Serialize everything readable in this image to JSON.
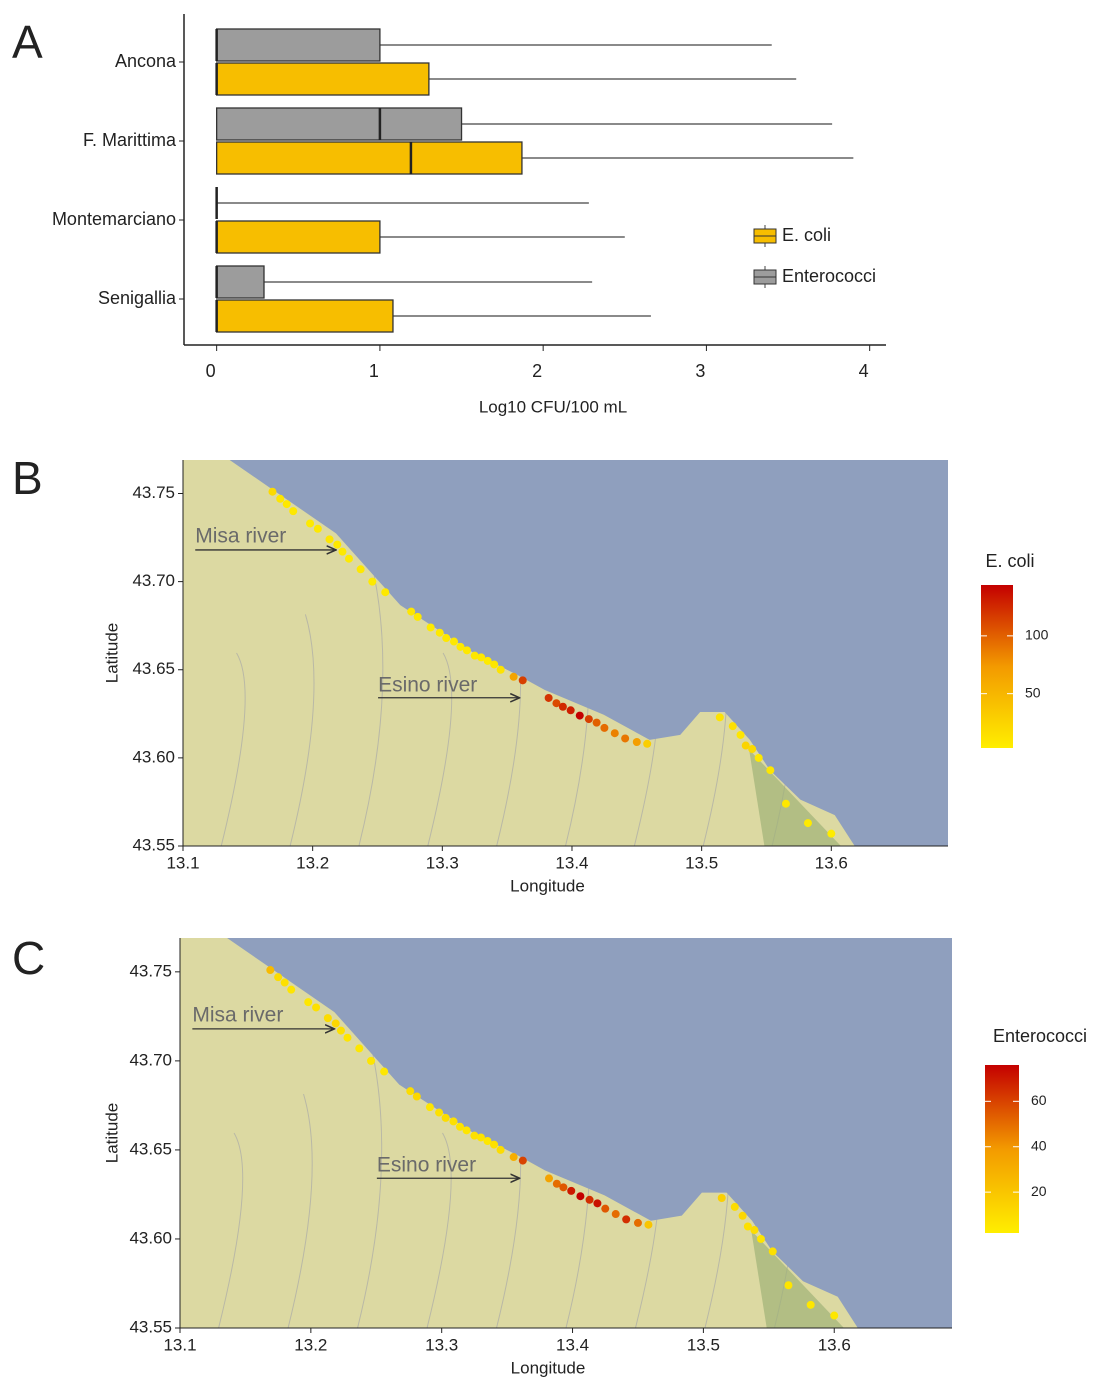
{
  "chart_data": [
    {
      "type": "boxplot",
      "panel": "A",
      "categories": [
        "Ancona",
        "F. Marittima",
        "Montemarciano",
        "Senigallia"
      ],
      "xlabel": "Log10 CFU/100 mL",
      "xlim": [
        -0.2,
        4.1
      ],
      "xticks": [
        0,
        1,
        2,
        3,
        4
      ],
      "series": [
        {
          "name": "E. coli",
          "color": "#f7be00",
          "min": [
            0,
            0,
            0,
            0
          ],
          "q1": [
            0,
            0,
            0,
            0
          ],
          "median": [
            0,
            1.19,
            0,
            0
          ],
          "q3": [
            1.3,
            1.87,
            1.0,
            1.08
          ],
          "max": [
            3.55,
            3.9,
            2.5,
            2.66
          ]
        },
        {
          "name": "Enterococci",
          "color": "#9c9c9c",
          "min": [
            0,
            0,
            0,
            0
          ],
          "q1": [
            0,
            0,
            0,
            0
          ],
          "median": [
            0,
            1.0,
            0,
            0
          ],
          "q3": [
            1.0,
            1.5,
            0,
            0.29
          ],
          "max": [
            3.4,
            3.77,
            2.28,
            2.3
          ]
        }
      ]
    },
    {
      "type": "scatter",
      "panel": "B",
      "xlabel": "Longitude",
      "ylabel": "Latitude",
      "colorbar_title": "E. coli",
      "colors": [
        "#ffee00",
        "#f39a00",
        "#c40000"
      ],
      "clim": [
        3,
        144
      ],
      "cticks": [
        50,
        100
      ],
      "annotations": [
        "Misa river",
        "Esino river"
      ],
      "xlim": [
        13.1,
        13.69
      ],
      "xticks": [
        13.1,
        13.2,
        13.3,
        13.4,
        13.5,
        13.6
      ],
      "ylim": [
        43.55,
        43.769
      ],
      "yticks": [
        43.55,
        {
          "value": 43.6,
          "label": "43.60"
        },
        43.65,
        {
          "value": 43.7,
          "label": "43.70"
        },
        43.75
      ],
      "x": [
        13.169,
        13.175,
        13.18,
        13.185,
        13.198,
        13.204,
        13.213,
        13.219,
        13.223,
        13.228,
        13.237,
        13.246,
        13.256,
        13.276,
        13.281,
        13.291,
        13.298,
        13.303,
        13.309,
        13.314,
        13.319,
        13.325,
        13.33,
        13.335,
        13.34,
        13.345,
        13.355,
        13.362,
        13.382,
        13.388,
        13.393,
        13.399,
        13.406,
        13.413,
        13.419,
        13.425,
        13.433,
        13.441,
        13.45,
        13.458,
        13.514,
        13.524,
        13.53,
        13.534,
        13.539,
        13.544,
        13.553,
        13.565,
        13.582,
        13.6
      ],
      "y": [
        43.751,
        43.747,
        43.744,
        43.74,
        43.733,
        43.73,
        43.724,
        43.721,
        43.717,
        43.713,
        43.707,
        43.7,
        43.694,
        43.683,
        43.68,
        43.674,
        43.671,
        43.668,
        43.666,
        43.663,
        43.661,
        43.658,
        43.657,
        43.655,
        43.653,
        43.65,
        43.646,
        43.644,
        43.634,
        43.631,
        43.629,
        43.627,
        43.624,
        43.622,
        43.62,
        43.617,
        43.614,
        43.611,
        43.609,
        43.608,
        43.623,
        43.618,
        43.613,
        43.607,
        43.605,
        43.6,
        43.593,
        43.574,
        43.563,
        43.557
      ],
      "values": [
        20,
        10,
        8,
        8,
        6,
        8,
        10,
        8,
        7,
        6,
        8,
        6,
        7,
        10,
        8,
        6,
        8,
        9,
        8,
        7,
        8,
        9,
        8,
        6,
        10,
        12,
        65,
        115,
        120,
        110,
        125,
        130,
        144,
        115,
        100,
        95,
        85,
        90,
        70,
        30,
        12,
        15,
        10,
        25,
        20,
        8,
        10,
        8,
        6,
        5
      ]
    },
    {
      "type": "scatter",
      "panel": "C",
      "xlabel": "Longitude",
      "ylabel": "Latitude",
      "colorbar_title": "Enterococci",
      "colors": [
        "#ffee00",
        "#f39a00",
        "#c40000"
      ],
      "clim": [
        2,
        76
      ],
      "cticks": [
        20,
        40,
        60
      ],
      "annotations": [
        "Misa river",
        "Esino river"
      ],
      "xlim": [
        13.1,
        13.69
      ],
      "xticks": [
        13.1,
        13.2,
        13.3,
        13.4,
        13.5,
        13.6
      ],
      "ylim": [
        43.55,
        43.769
      ],
      "yticks": [
        43.55,
        {
          "value": 43.6,
          "label": "43.60"
        },
        43.65,
        {
          "value": 43.7,
          "label": "43.70"
        },
        43.75
      ],
      "x": [
        13.169,
        13.175,
        13.18,
        13.185,
        13.198,
        13.204,
        13.213,
        13.219,
        13.223,
        13.228,
        13.237,
        13.246,
        13.256,
        13.276,
        13.281,
        13.291,
        13.298,
        13.303,
        13.309,
        13.314,
        13.319,
        13.325,
        13.33,
        13.335,
        13.34,
        13.345,
        13.355,
        13.362,
        13.382,
        13.388,
        13.393,
        13.399,
        13.406,
        13.413,
        13.419,
        13.425,
        13.433,
        13.441,
        13.45,
        13.458,
        13.514,
        13.524,
        13.53,
        13.534,
        13.539,
        13.544,
        13.553,
        13.565,
        13.582,
        13.6
      ],
      "y": [
        43.751,
        43.747,
        43.744,
        43.74,
        43.733,
        43.73,
        43.724,
        43.721,
        43.717,
        43.713,
        43.707,
        43.7,
        43.694,
        43.683,
        43.68,
        43.674,
        43.671,
        43.668,
        43.666,
        43.663,
        43.661,
        43.658,
        43.657,
        43.655,
        43.653,
        43.65,
        43.646,
        43.644,
        43.634,
        43.631,
        43.629,
        43.627,
        43.624,
        43.622,
        43.62,
        43.617,
        43.614,
        43.611,
        43.609,
        43.608,
        43.623,
        43.618,
        43.613,
        43.607,
        43.605,
        43.6,
        43.593,
        43.574,
        43.563,
        43.557
      ],
      "values": [
        25,
        10,
        8,
        6,
        5,
        8,
        10,
        12,
        8,
        6,
        5,
        6,
        5,
        10,
        12,
        6,
        8,
        10,
        8,
        7,
        6,
        8,
        7,
        5,
        8,
        10,
        30,
        60,
        35,
        50,
        55,
        70,
        76,
        65,
        72,
        55,
        50,
        65,
        50,
        20,
        15,
        10,
        12,
        8,
        10,
        6,
        8,
        6,
        5,
        5
      ]
    }
  ]
}
